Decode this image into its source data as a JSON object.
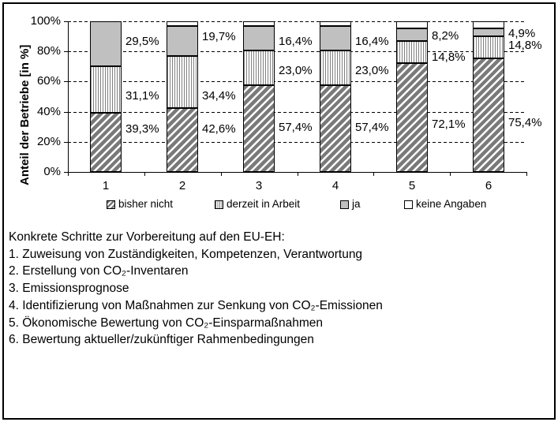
{
  "chart_data": {
    "type": "bar",
    "variant": "stacked-100-percent",
    "title": "",
    "categories": [
      "1",
      "2",
      "3",
      "4",
      "5",
      "6"
    ],
    "series": [
      {
        "name": "bisher nicht",
        "pattern": "diagonal-hatch",
        "values": [
          39.3,
          42.6,
          57.4,
          57.4,
          72.1,
          75.4
        ]
      },
      {
        "name": "derzeit in Arbeit",
        "pattern": "vertical-lines",
        "values": [
          31.1,
          34.4,
          23.0,
          23.0,
          14.8,
          14.8
        ]
      },
      {
        "name": "ja",
        "pattern": "solid-gray",
        "values": [
          29.5,
          19.7,
          16.4,
          16.4,
          8.2,
          4.9
        ]
      },
      {
        "name": "keine Angaben",
        "pattern": "white",
        "values": [
          0.1,
          3.3,
          3.2,
          3.2,
          4.9,
          4.9
        ]
      }
    ],
    "ylabel": "Anteil der Betriebe [in %]",
    "xlabel": "",
    "ylim": [
      0,
      100
    ],
    "y_ticks": [
      "0%",
      "20%",
      "40%",
      "60%",
      "80%",
      "100%"
    ],
    "grid": "dashed-horizontal",
    "legend_position": "bottom",
    "data_labels": [
      [
        {
          "text": "39,3%",
          "y_pct": 29.0
        },
        {
          "text": "31,1%",
          "y_pct": 51.0
        },
        {
          "text": "29,5%",
          "y_pct": 87.0
        }
      ],
      [
        {
          "text": "42,6%",
          "y_pct": 29.0
        },
        {
          "text": "34,4%",
          "y_pct": 51.0
        },
        {
          "text": "19,7%",
          "y_pct": 90.0
        }
      ],
      [
        {
          "text": "57,4%",
          "y_pct": 30.0
        },
        {
          "text": "23,0%",
          "y_pct": 67.5
        },
        {
          "text": "16,4%",
          "y_pct": 87.0
        }
      ],
      [
        {
          "text": "57,4%",
          "y_pct": 30.0
        },
        {
          "text": "23,0%",
          "y_pct": 67.5
        },
        {
          "text": "16,4%",
          "y_pct": 87.0
        }
      ],
      [
        {
          "text": "72,1%",
          "y_pct": 32.0
        },
        {
          "text": "14,8%",
          "y_pct": 76.5
        },
        {
          "text": "8,2%",
          "y_pct": 90.5
        }
      ],
      [
        {
          "text": "75,4%",
          "y_pct": 33.0
        },
        {
          "text": "14,8%",
          "y_pct": 84.5
        },
        {
          "text": "4,9%",
          "y_pct": 92.4
        }
      ]
    ],
    "colors": {
      "hatch_fill": "#7a7a7a",
      "vertical_line": "#808080",
      "ja_fill": "#c0c0c0",
      "keine_angaben_fill": "#ffffff",
      "axis": "#000000",
      "background": "#ffffff"
    }
  },
  "notes": {
    "lines": [
      "Konkrete Schritte zur Vorbereitung auf den EU-EH:",
      "1. Zuweisung von Zuständigkeiten, Kompetenzen, Verantwortung",
      "2. Erstellung von CO₂-Inventaren",
      "3. Emissionsprognose",
      "4. Identifizierung von Maßnahmen zur Senkung von CO₂-Emissionen",
      "5. Ökonomische Bewertung von CO₂-Einsparmaßnahmen",
      "6. Bewertung aktueller/zukünftiger Rahmenbedingungen"
    ]
  }
}
